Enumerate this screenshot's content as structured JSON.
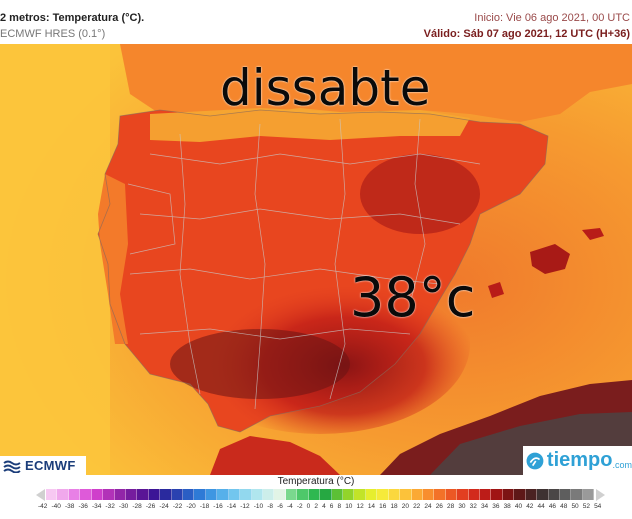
{
  "header": {
    "title": "2 metros: Temperatura (°C).",
    "model": "ECMWF HRES (0.1°)",
    "init": "Inicio: Vie 06 ago 2021, 00 UTC",
    "valid": "Válido: Sáb 07 ago 2021, 12 UTC (H+36)"
  },
  "overlay": {
    "day_text": "dissabte",
    "temp_text": "38°c"
  },
  "logos": {
    "left": "ECMWF",
    "right": "tiempo",
    "right_suffix": ".com"
  },
  "legend": {
    "title": "Temperatura (°C)",
    "ticks": [
      "-42",
      "-40",
      "-38",
      "-36",
      "-34",
      "-32",
      "-30",
      "-28",
      "-26",
      "-24",
      "-22",
      "-20",
      "-18",
      "-16",
      "-14",
      "-12",
      "-10",
      "-8",
      "-6",
      "-4",
      "-2",
      "0",
      "2",
      "4",
      "6",
      "8",
      "10",
      "12",
      "14",
      "16",
      "18",
      "20",
      "22",
      "24",
      "26",
      "28",
      "30",
      "32",
      "34",
      "36",
      "38",
      "40",
      "42",
      "44",
      "46",
      "48",
      "50",
      "52",
      "54"
    ],
    "colors": [
      "#f7c8f2",
      "#f0a8ec",
      "#e880e6",
      "#de5ad9",
      "#cf3fcb",
      "#b232b8",
      "#9226a8",
      "#761d9e",
      "#5a1596",
      "#3c1596",
      "#2a2a9e",
      "#2a42b0",
      "#2a5ec4",
      "#2e7ad6",
      "#3e96e2",
      "#56b0ea",
      "#72c6ee",
      "#92d8ee",
      "#b0e6ee",
      "#cceeea",
      "#e2f4e6",
      "#7ad88e",
      "#4ec86a",
      "#2eb850",
      "#26a842",
      "#5cc036",
      "#92d42a",
      "#c2e428",
      "#e6ee2e",
      "#f6ea3a",
      "#fbd83e",
      "#fcc23a",
      "#fba934",
      "#f88e2e",
      "#f37228",
      "#ec5824",
      "#e23f20",
      "#d22a1c",
      "#bc1c18",
      "#a01414",
      "#7c1414",
      "#5e1818",
      "#4a2222",
      "#3e3232",
      "#4a4646",
      "#5e5e5e",
      "#7a7a7a",
      "#9a9a9a"
    ]
  }
}
